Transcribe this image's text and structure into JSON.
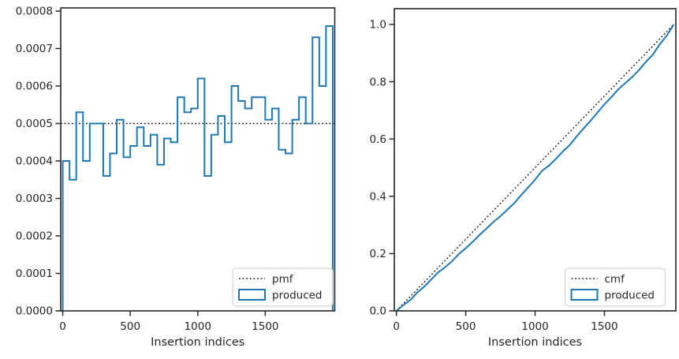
{
  "figure": {
    "background": "#ffffff",
    "accent_blue": "#1f77b4",
    "text_color": "#262626",
    "spine_color": "#262626",
    "dotted_color": "#111111",
    "legend_border": "#cccccc"
  },
  "chart_data": [
    {
      "type": "bar",
      "subtype": "step-histogram",
      "xlabel": "Insertion indices",
      "ylabel": "",
      "xlim": [
        0,
        2000
      ],
      "ylim": [
        0,
        0.0008
      ],
      "xticks": [
        0,
        500,
        1000,
        1500
      ],
      "xtick_labels": [
        "0",
        "500",
        "1000",
        "1500"
      ],
      "yticks": [
        0,
        0.0001,
        0.0002,
        0.0003,
        0.0004,
        0.0005,
        0.0006,
        0.0007,
        0.0008
      ],
      "ytick_labels": [
        "0.0000",
        "0.0001",
        "0.0002",
        "0.0003",
        "0.0004",
        "0.0005",
        "0.0006",
        "0.0007",
        "0.0008"
      ],
      "bin_start": 0,
      "bin_width": 50,
      "series": [
        {
          "name": "produced",
          "values": [
            0.0004,
            0.00035,
            0.00053,
            0.0004,
            0.0005,
            0.0005,
            0.00036,
            0.00042,
            0.00051,
            0.00041,
            0.00044,
            0.00049,
            0.00044,
            0.00047,
            0.00039,
            0.00046,
            0.00045,
            0.00057,
            0.00053,
            0.00054,
            0.00062,
            0.00036,
            0.00047,
            0.00052,
            0.00045,
            0.0006,
            0.00056,
            0.00054,
            0.00057,
            0.00057,
            0.00051,
            0.00054,
            0.00043,
            0.00042,
            0.00051,
            0.00057,
            0.0005,
            0.00073,
            0.0006,
            0.00076
          ]
        }
      ],
      "reference_line": {
        "name": "pmf",
        "style": "dotted",
        "value": 0.0005
      },
      "legend": {
        "position": "lower right",
        "entries": [
          {
            "label": "pmf",
            "marker": "dotted-line"
          },
          {
            "label": "produced",
            "marker": "rect-outline"
          }
        ]
      }
    },
    {
      "type": "line",
      "subtype": "cumulative",
      "xlabel": "Insertion indices",
      "ylabel": "",
      "xlim": [
        0,
        2000
      ],
      "ylim": [
        0,
        1.0
      ],
      "xticks": [
        0,
        500,
        1000,
        1500
      ],
      "xtick_labels": [
        "0",
        "500",
        "1000",
        "1500"
      ],
      "yticks": [
        0,
        0.2,
        0.4,
        0.6,
        0.8,
        1.0
      ],
      "ytick_labels": [
        "0.0",
        "0.2",
        "0.4",
        "0.6",
        "0.8",
        "1.0"
      ],
      "series": [
        {
          "name": "produced",
          "x": [
            0,
            50,
            100,
            150,
            200,
            250,
            300,
            350,
            400,
            450,
            500,
            550,
            600,
            650,
            700,
            750,
            800,
            850,
            900,
            950,
            1000,
            1050,
            1100,
            1150,
            1200,
            1250,
            1300,
            1350,
            1400,
            1450,
            1500,
            1550,
            1600,
            1650,
            1700,
            1750,
            1800,
            1850,
            1900,
            1950,
            2000
          ],
          "y": [
            0,
            0.02,
            0.0375,
            0.064,
            0.084,
            0.109,
            0.134,
            0.152,
            0.173,
            0.1985,
            0.219,
            0.241,
            0.2655,
            0.2875,
            0.311,
            0.3305,
            0.3535,
            0.376,
            0.4045,
            0.431,
            0.458,
            0.489,
            0.507,
            0.5305,
            0.5565,
            0.579,
            0.609,
            0.637,
            0.664,
            0.6925,
            0.721,
            0.7465,
            0.7735,
            0.795,
            0.816,
            0.8415,
            0.87,
            0.895,
            0.9315,
            0.9615,
            1.0
          ]
        }
      ],
      "reference_line": {
        "name": "cmf",
        "style": "dotted",
        "from": [
          0,
          0
        ],
        "to": [
          2000,
          1.0
        ]
      },
      "legend": {
        "position": "lower right",
        "entries": [
          {
            "label": "cmf",
            "marker": "dotted-line"
          },
          {
            "label": "produced",
            "marker": "rect-outline"
          }
        ]
      }
    }
  ]
}
